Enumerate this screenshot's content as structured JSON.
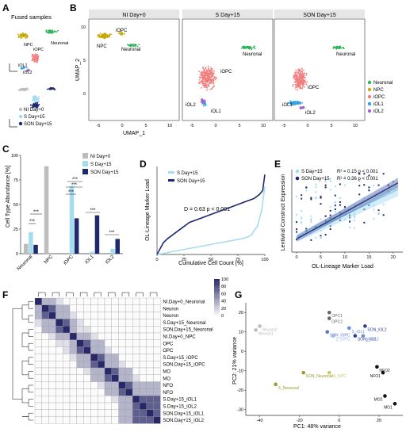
{
  "panels": {
    "A": {
      "label": "A",
      "title": "Fused samples",
      "legend": [
        "NI Day+0",
        "S Day+15",
        "SON Day+15"
      ],
      "cluster_labels": [
        "Neuronal",
        "NPC",
        "iOPC",
        "iOL1",
        "iOL2"
      ]
    },
    "B": {
      "label": "B",
      "facet_titles": [
        "NI Day+0",
        "S Day+15",
        "SON Day+15"
      ],
      "xlabel": "UMAP_1",
      "ylabel": "UMAP_2",
      "x_ticks": [
        "-5",
        "0",
        "5",
        "10"
      ],
      "y_ticks": [
        "0",
        "5",
        "10"
      ],
      "cluster_labels_f1": [
        "iOPC",
        "NPC",
        "Neuronal"
      ],
      "cluster_labels_f2": [
        "Neuronal",
        "iOPC",
        "iOL2",
        "iOL1"
      ],
      "cluster_labels_f3": [
        "Neuronal",
        "iOPC",
        "iOL1",
        "iOL2"
      ],
      "legend": [
        {
          "name": "Neuronal",
          "color": "#2db35a"
        },
        {
          "name": "NPC",
          "color": "#c9a800"
        },
        {
          "name": "iOPC",
          "color": "#f08080"
        },
        {
          "name": "iOL1",
          "color": "#33a3e0"
        },
        {
          "name": "iOL2",
          "color": "#a066cc"
        }
      ]
    },
    "C": {
      "label": "C",
      "chart_data": {
        "type": "bar",
        "categories": [
          "Neuronal",
          "NPC",
          "iOPC",
          "iOL1",
          "iOL2"
        ],
        "series": [
          {
            "name": "NI Day+0",
            "color": "#bdbdbd",
            "values": [
              10,
              89,
              0,
              0,
              0
            ]
          },
          {
            "name": "S Day+15",
            "color": "#a6dcef",
            "values": [
              22,
              0,
              69,
              2,
              5
            ]
          },
          {
            "name": "SON Day+15",
            "color": "#1f2a6e",
            "values": [
              9,
              0,
              36,
              39,
              15
            ]
          }
        ],
        "ylabel": "Cell Type Abundance [%]",
        "ylim": [
          0,
          100
        ],
        "yticks": [
          "0",
          "25",
          "50",
          "75",
          "100"
        ],
        "significance": [
          "***",
          "***",
          "***",
          "***",
          "***",
          "***",
          "***"
        ]
      }
    },
    "D": {
      "label": "D",
      "chart_data": {
        "type": "line",
        "xlabel": "Cumulative Cell Count [%]",
        "ylabel": "OL-Lineage Marker Load",
        "xticks": [
          "0",
          "25",
          "50",
          "75",
          "100"
        ],
        "xlim": [
          0,
          100
        ],
        "ylim": [
          0,
          22
        ],
        "series": [
          {
            "name": "S Day+15",
            "color": "#a6dcef",
            "x": [
              0,
              5,
              10,
              20,
              30,
              40,
              50,
              60,
              70,
              80,
              85,
              88,
              90,
              93,
              95,
              97,
              98,
              99,
              100
            ],
            "y": [
              0,
              0.2,
              0.5,
              1,
              1.5,
              2,
              2.5,
              3,
              3.5,
              4,
              4.5,
              5,
              6,
              7,
              9,
              11,
              13,
              15,
              17
            ]
          },
          {
            "name": "SON Day+15",
            "color": "#1f2a6e",
            "x": [
              0,
              3,
              6,
              10,
              15,
              20,
              25,
              30,
              40,
              50,
              60,
              70,
              80,
              90,
              95,
              98,
              100
            ],
            "y": [
              0,
              1.5,
              3,
              4,
              5,
              6,
              7,
              8,
              9,
              10,
              11,
              12,
              13,
              14,
              15,
              16,
              20
            ]
          }
        ],
        "annotation": "D = 0.63  p < 0.001"
      }
    },
    "E": {
      "label": "E",
      "chart_data": {
        "type": "scatter",
        "xlabel": "OL-Lineage Marker Load",
        "ylabel": "Lentiviral Construct Expression",
        "xticks": [
          "0",
          "5",
          "10",
          "15",
          "20"
        ],
        "xlim": [
          -1,
          22
        ],
        "ylim": [
          0,
          10
        ],
        "series": [
          {
            "name": "S Day+15",
            "color": "#a6dcef",
            "stat": "R² = 0.15  p < 0.001"
          },
          {
            "name": "SON Day+15",
            "color": "#1f2a6e",
            "stat": "R² = 0.36  p < 0.001"
          }
        ]
      }
    },
    "F": {
      "label": "F",
      "row_labels": [
        "NI.Day+0_Neuronal",
        "Neuron",
        "Neuron",
        "S.Day+15_Neuronal",
        "SON.Day+15_Neuronal",
        "NI.Day+0_NPC",
        "OPC",
        "OPC",
        "S.Day+15_iOPC",
        "SON.Day+15_iOPC",
        "MO",
        "MO",
        "NFO",
        "NFO",
        "S.Day+15_iOL1",
        "S.Day+15_iOL2",
        "SON.Day+15_iOL1",
        "SON.Day+15_iOL2"
      ],
      "colorbar_ticks": [
        "100",
        "80",
        "60",
        "40",
        "20",
        "0"
      ]
    },
    "G": {
      "label": "G",
      "chart_data": {
        "type": "scatter",
        "xlabel": "PC1: 48% variance",
        "ylabel": "PC2: 21% variance",
        "xticks": [
          "-40",
          "-20",
          "0",
          "20"
        ],
        "yticks": [
          "-30",
          "-20",
          "-10",
          "0",
          "10",
          "20"
        ],
        "xlim": [
          -47,
          32
        ],
        "ylim": [
          -33,
          25
        ],
        "points": [
          {
            "label": "Neuron2",
            "x": -40,
            "y": 13,
            "color": "#bdbdbd"
          },
          {
            "label": "Neuron1",
            "x": -42,
            "y": 11,
            "color": "#bdbdbd"
          },
          {
            "label": "OPC1",
            "x": -5,
            "y": 20,
            "color": "#666666"
          },
          {
            "label": "OPC2",
            "x": -5,
            "y": 17,
            "color": "#666666"
          },
          {
            "label": "S_iOL1",
            "x": 5,
            "y": 12,
            "color": "#6b8fd6"
          },
          {
            "label": "SON_iOL2",
            "x": 13,
            "y": 13,
            "color": "#2c3f9e"
          },
          {
            "label": "SON_iOPC",
            "x": -6,
            "y": 10,
            "color": "#5b75c7"
          },
          {
            "label": "S_iOPC",
            "x": -3,
            "y": 8,
            "color": "#9db6ea"
          },
          {
            "label": "SON_iOL1",
            "x": 8,
            "y": 8,
            "color": "#2c3f9e"
          },
          {
            "label": "S_iOL2",
            "x": 12,
            "y": 8,
            "color": "#6b8fd6"
          },
          {
            "label": "NI_NPC",
            "x": -5,
            "y": -11,
            "color": "#c9c96b"
          },
          {
            "label": "SON_Neuronal",
            "x": -18,
            "y": -11,
            "color": "#9b9b2e"
          },
          {
            "label": "S_Neuronal",
            "x": -32,
            "y": -17,
            "color": "#9b9b2e"
          },
          {
            "label": "NFO2",
            "x": 19,
            "y": -8,
            "color": "#111111"
          },
          {
            "label": "NFO1",
            "x": 22,
            "y": -11,
            "color": "#111111"
          },
          {
            "label": "MO2",
            "x": 23,
            "y": -23,
            "color": "#111111"
          },
          {
            "label": "MO1",
            "x": 28,
            "y": -27,
            "color": "#111111"
          }
        ]
      }
    }
  }
}
